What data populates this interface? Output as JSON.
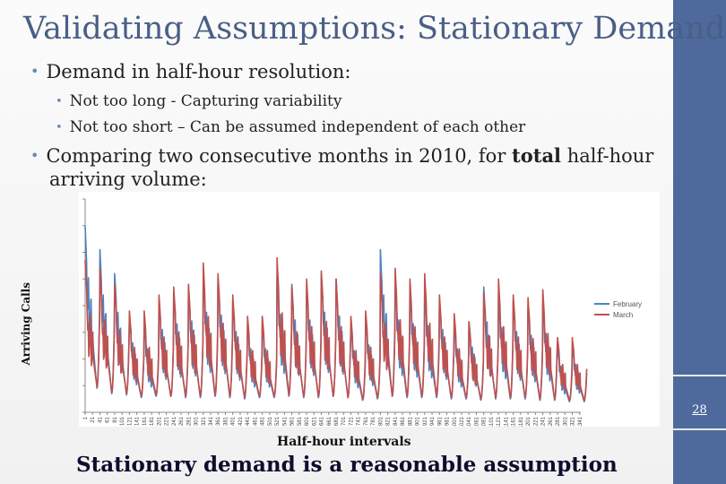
{
  "slide": {
    "title": "Validating Assumptions: Stationary Demand",
    "bullets": [
      "Demand in half-hour resolution:",
      "Not too long - Capturing variability",
      "Not too short – Can be assumed independent of each other"
    ],
    "bullet3_pre": "Comparing two consecutive months in 2010, for ",
    "bullet3_bold": "total",
    "bullet3_post": " half-hour",
    "bullet3_line2": "arriving volume:",
    "ylabel": "Arriving Calls",
    "xlabel": "Half-hour intervals",
    "conclusion": "Stationary demand is a reasonable assumption",
    "page_number": "28",
    "colors": {
      "title": "#4a5f86",
      "sidebar": "#4e6a9c",
      "bullet": "#6a87b8"
    }
  },
  "chart_data": {
    "type": "line",
    "xlabel": "Half-hour intervals",
    "ylabel": "Arriving Calls",
    "ylim": [
      0,
      800
    ],
    "yticks": [
      "0",
      "100",
      "200",
      "300",
      "400",
      "500",
      "600",
      "700",
      "800"
    ],
    "xticks": [
      "1",
      "21",
      "41",
      "61",
      "81",
      "101",
      "121",
      "141",
      "161",
      "181",
      "201",
      "221",
      "241",
      "261",
      "281",
      "301",
      "321",
      "341",
      "361",
      "381",
      "401",
      "421",
      "441",
      "461",
      "481",
      "501",
      "521",
      "541",
      "561",
      "581",
      "601",
      "621",
      "641",
      "661",
      "681",
      "701",
      "721",
      "741",
      "761",
      "781",
      "801",
      "821",
      "841",
      "861",
      "881",
      "901",
      "921",
      "941",
      "961",
      "981",
      "1001",
      "1021",
      "1041",
      "1061",
      "1081",
      "1101",
      "1121",
      "1141",
      "1161",
      "1181",
      "1201",
      "1221",
      "1241",
      "1261",
      "1281",
      "1301",
      "1321",
      "1341"
    ],
    "x_range": [
      1,
      1344
    ],
    "grid": false,
    "legend_position": "right",
    "series": [
      {
        "name": "February",
        "color": "#4f81bd",
        "day_peaks": [
          700,
          610,
          520,
          360,
          330,
          430,
          460,
          475,
          520,
          505,
          420,
          330,
          330,
          510,
          480,
          480,
          520,
          500,
          320,
          350,
          610,
          480,
          460,
          450,
          430,
          330,
          340,
          470,
          440,
          420,
          400,
          410,
          240,
          250
        ],
        "night_min": [
          90,
          70,
          65,
          55,
          60,
          60,
          55,
          55,
          60,
          55,
          50,
          55,
          55,
          60,
          55,
          55,
          60,
          55,
          45,
          50,
          60,
          55,
          55,
          55,
          50,
          50,
          45,
          50,
          50,
          50,
          45,
          45,
          40,
          40
        ]
      },
      {
        "name": "March",
        "color": "#c0504d",
        "day_peaks": [
          570,
          540,
          480,
          380,
          380,
          440,
          470,
          480,
          560,
          520,
          440,
          360,
          360,
          580,
          470,
          500,
          530,
          500,
          360,
          380,
          520,
          540,
          500,
          520,
          440,
          370,
          340,
          450,
          500,
          440,
          430,
          460,
          280,
          280
        ],
        "night_min": [
          95,
          75,
          70,
          60,
          65,
          60,
          60,
          60,
          65,
          60,
          55,
          60,
          60,
          65,
          60,
          60,
          60,
          55,
          50,
          55,
          60,
          60,
          60,
          60,
          55,
          55,
          50,
          55,
          55,
          55,
          50,
          50,
          45,
          45
        ]
      }
    ]
  }
}
